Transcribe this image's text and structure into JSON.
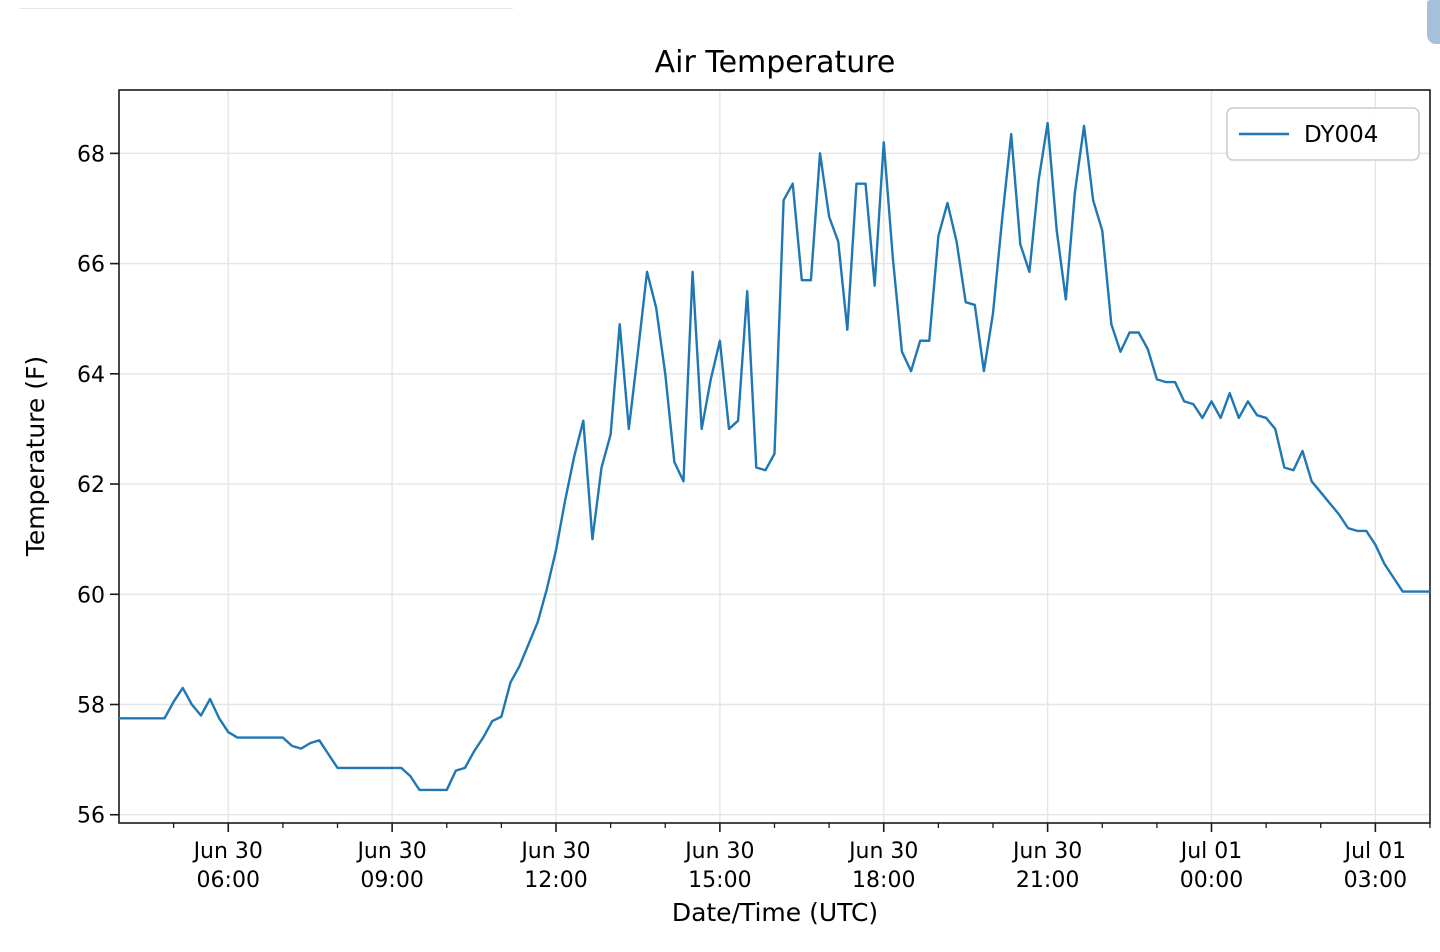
{
  "page": {
    "background": "#ffffff"
  },
  "decorations": {
    "toolbar_divider_color": "#e7e7e7",
    "scrollbar_thumb_color": "#a4c0da"
  },
  "chart_data": {
    "type": "line",
    "title": "Air Temperature",
    "xlabel": "Date/Time (UTC)",
    "ylabel": "Temperature (F)",
    "grid": true,
    "legend_position": "upper right",
    "xlim_hours_from_jun30_0000_utc": [
      4,
      28
    ],
    "ylim": [
      55.85,
      69.15
    ],
    "y_ticks": [
      56,
      58,
      60,
      62,
      64,
      66,
      68
    ],
    "x_ticks": [
      {
        "hour": 6,
        "label_line1": "Jun 30",
        "label_line2": "06:00"
      },
      {
        "hour": 9,
        "label_line1": "Jun 30",
        "label_line2": "09:00"
      },
      {
        "hour": 12,
        "label_line1": "Jun 30",
        "label_line2": "12:00"
      },
      {
        "hour": 15,
        "label_line1": "Jun 30",
        "label_line2": "15:00"
      },
      {
        "hour": 18,
        "label_line1": "Jun 30",
        "label_line2": "18:00"
      },
      {
        "hour": 21,
        "label_line1": "Jun 30",
        "label_line2": "21:00"
      },
      {
        "hour": 24,
        "label_line1": "Jul 01",
        "label_line2": "00:00"
      },
      {
        "hour": 27,
        "label_line1": "Jul 01",
        "label_line2": "03:00"
      }
    ],
    "x_minor_tick_every_hours": 1,
    "series": [
      {
        "name": "DY004",
        "color": "#1f77b4",
        "x_start_hour": 4,
        "x_step_minutes": 10,
        "values": [
          57.75,
          57.75,
          57.75,
          57.75,
          57.75,
          57.75,
          58.05,
          58.3,
          58.0,
          57.8,
          58.1,
          57.75,
          57.5,
          57.4,
          57.4,
          57.4,
          57.4,
          57.4,
          57.4,
          57.25,
          57.2,
          57.3,
          57.35,
          57.1,
          56.85,
          56.85,
          56.85,
          56.85,
          56.85,
          56.85,
          56.85,
          56.85,
          56.7,
          56.45,
          56.45,
          56.45,
          56.45,
          56.8,
          56.85,
          57.15,
          57.4,
          57.7,
          57.78,
          58.4,
          58.7,
          59.1,
          59.5,
          60.1,
          60.8,
          61.7,
          62.5,
          63.15,
          61.0,
          62.3,
          62.9,
          64.9,
          63.0,
          64.4,
          65.85,
          65.2,
          64.0,
          62.4,
          62.05,
          65.85,
          63.0,
          63.9,
          64.6,
          63.0,
          63.15,
          65.5,
          62.3,
          62.25,
          62.55,
          67.15,
          67.45,
          65.7,
          65.7,
          68.0,
          66.85,
          66.4,
          64.8,
          67.45,
          67.45,
          65.6,
          68.2,
          66.1,
          64.4,
          64.05,
          64.6,
          64.6,
          66.5,
          67.1,
          66.4,
          65.3,
          65.25,
          64.05,
          65.1,
          66.8,
          68.35,
          66.35,
          65.85,
          67.5,
          68.55,
          66.6,
          65.35,
          67.3,
          68.5,
          67.15,
          66.6,
          64.9,
          64.4,
          64.75,
          64.75,
          64.45,
          63.9,
          63.85,
          63.85,
          63.5,
          63.45,
          63.2,
          63.5,
          63.2,
          63.65,
          63.2,
          63.5,
          63.25,
          63.2,
          63.0,
          62.3,
          62.25,
          62.6,
          62.05,
          61.85,
          61.65,
          61.45,
          61.2,
          61.15,
          61.15,
          60.9,
          60.55,
          60.3,
          60.05,
          60.05,
          60.05,
          60.05
        ]
      }
    ]
  }
}
